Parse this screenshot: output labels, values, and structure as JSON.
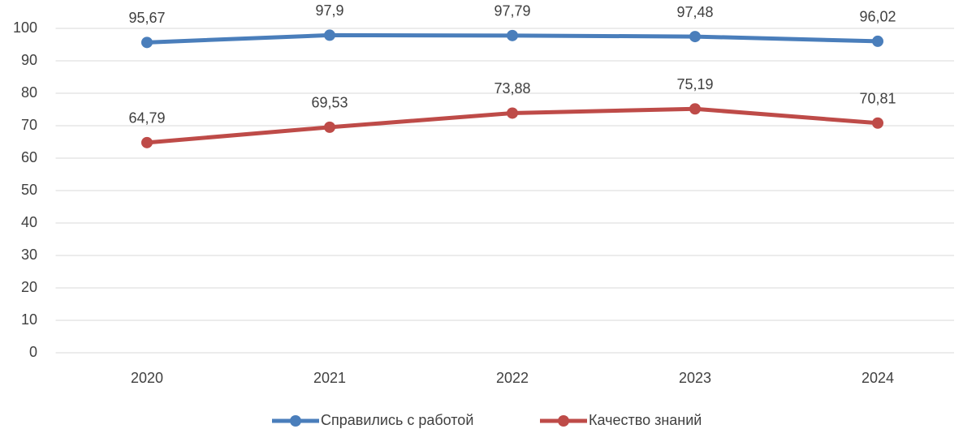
{
  "chart_data": {
    "type": "line",
    "categories": [
      "2020",
      "2021",
      "2022",
      "2023",
      "2024"
    ],
    "series": [
      {
        "name": "Справились с работой",
        "color": "#4a7ebb",
        "values": [
          95.67,
          97.9,
          97.79,
          97.48,
          96.02
        ],
        "value_labels": [
          "95,67",
          "97,9",
          "97,79",
          "97,48",
          "96,02"
        ]
      },
      {
        "name": "Качество знаний",
        "color": "#be4b48",
        "values": [
          64.79,
          69.53,
          73.88,
          75.19,
          70.81
        ],
        "value_labels": [
          "64,79",
          "69,53",
          "73,88",
          "75,19",
          "70,81"
        ]
      }
    ],
    "ylim": [
      0,
      100
    ],
    "yticks": [
      0,
      10,
      20,
      30,
      40,
      50,
      60,
      70,
      80,
      90,
      100
    ],
    "grid": true,
    "legend": "bottom"
  }
}
